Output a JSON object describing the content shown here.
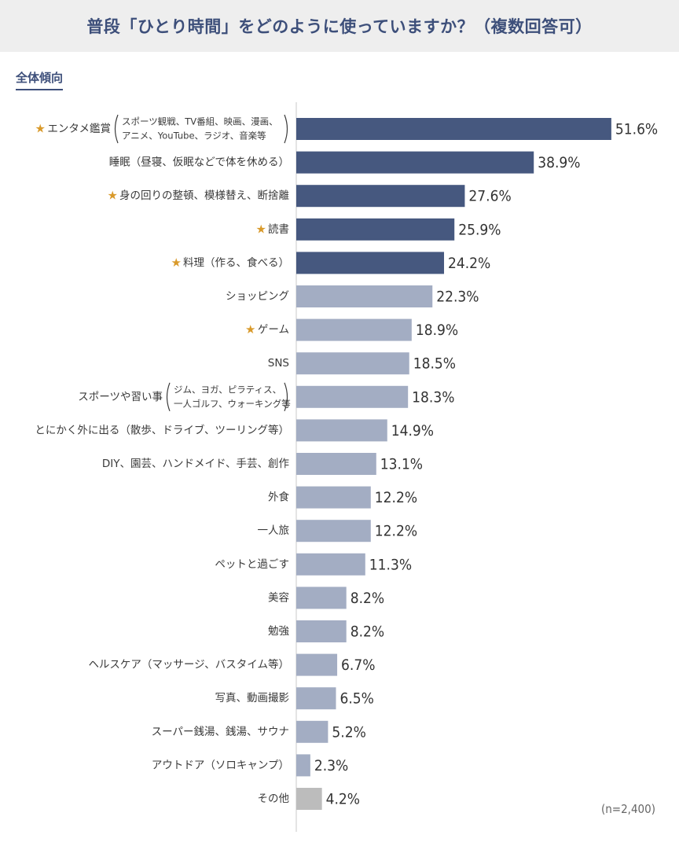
{
  "title": "普段「ひとり時間」をどのように使っていますか？（複数回答可）",
  "section_label": "全体傾向",
  "sample_note": "(n=2,400)",
  "colors": {
    "dark": "#46587f",
    "light": "#a3adc3",
    "other": "#bcbcbc",
    "star": "#d99a2b"
  },
  "chart_data": {
    "type": "bar",
    "orientation": "horizontal",
    "unit": "%",
    "xlim": [
      0,
      52
    ],
    "categories": [
      {
        "label": "エンタメ鑑賞",
        "note": [
          "スポーツ観戦、TV番組、映画、漫画、",
          "アニメ、YouTube、ラジオ、音楽等"
        ],
        "star": true,
        "value": 51.6,
        "tone": "dark"
      },
      {
        "label": "睡眠（昼寝、仮眠などで体を休める）",
        "star": false,
        "value": 38.9,
        "tone": "dark"
      },
      {
        "label": "身の回りの整頓、模様替え、断捨離",
        "star": true,
        "value": 27.6,
        "tone": "dark"
      },
      {
        "label": "読書",
        "star": true,
        "value": 25.9,
        "tone": "dark"
      },
      {
        "label": "料理（作る、食べる）",
        "star": true,
        "value": 24.2,
        "tone": "dark"
      },
      {
        "label": "ショッピング",
        "star": false,
        "value": 22.3,
        "tone": "light"
      },
      {
        "label": "ゲーム",
        "star": true,
        "value": 18.9,
        "tone": "light"
      },
      {
        "label": "SNS",
        "star": false,
        "value": 18.5,
        "tone": "light"
      },
      {
        "label": "スポーツや習い事",
        "note": [
          "ジム、ヨガ、ピラティス、",
          "一人ゴルフ、ウォーキング等"
        ],
        "star": false,
        "value": 18.3,
        "tone": "light"
      },
      {
        "label": "とにかく外に出る（散歩、ドライブ、ツーリング等）",
        "star": false,
        "value": 14.9,
        "tone": "light"
      },
      {
        "label": "DIY、園芸、ハンドメイド、手芸、創作",
        "star": false,
        "value": 13.1,
        "tone": "light"
      },
      {
        "label": "外食",
        "star": false,
        "value": 12.2,
        "tone": "light"
      },
      {
        "label": "一人旅",
        "star": false,
        "value": 12.2,
        "tone": "light"
      },
      {
        "label": "ペットと過ごす",
        "star": false,
        "value": 11.3,
        "tone": "light"
      },
      {
        "label": "美容",
        "star": false,
        "value": 8.2,
        "tone": "light"
      },
      {
        "label": "勉強",
        "star": false,
        "value": 8.2,
        "tone": "light"
      },
      {
        "label": "ヘルスケア（マッサージ、バスタイム等）",
        "star": false,
        "value": 6.7,
        "tone": "light"
      },
      {
        "label": "写真、動画撮影",
        "star": false,
        "value": 6.5,
        "tone": "light"
      },
      {
        "label": "スーパー銭湯、銭湯、サウナ",
        "star": false,
        "value": 5.2,
        "tone": "light"
      },
      {
        "label": "アウトドア（ソロキャンプ）",
        "star": false,
        "value": 2.3,
        "tone": "light"
      },
      {
        "label": "その他",
        "star": false,
        "value": 4.2,
        "tone": "other"
      }
    ]
  }
}
